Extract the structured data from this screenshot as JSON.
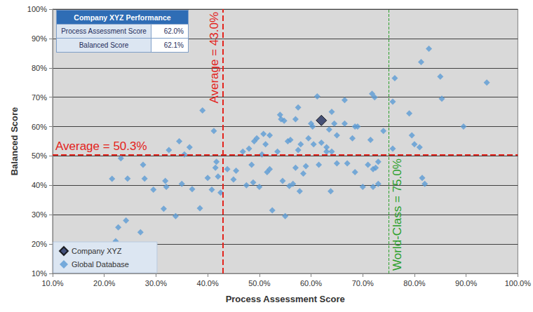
{
  "chart_data": {
    "type": "scatter",
    "x_label": "Process Assessment Score",
    "y_label": "Balanced Score",
    "xlim": [
      10,
      100
    ],
    "xticks": [
      {
        "value": 10,
        "label": "10.0%"
      },
      {
        "value": 20,
        "label": "20.0%"
      },
      {
        "value": 30,
        "label": "30.0%"
      },
      {
        "value": 40,
        "label": "40.0%"
      },
      {
        "value": 50,
        "label": "50.0%"
      },
      {
        "value": 60,
        "label": "60.0%"
      },
      {
        "value": 70,
        "label": "70.0%"
      },
      {
        "value": 80,
        "label": "80.0%"
      },
      {
        "value": 90,
        "label": "90.0%"
      },
      {
        "value": 100,
        "label": "100.0%"
      }
    ],
    "ylim": [
      10,
      100
    ],
    "yticks": [
      {
        "value": 10,
        "label": "10%"
      },
      {
        "value": 20,
        "label": "20%"
      },
      {
        "value": 30,
        "label": "30%"
      },
      {
        "value": 40,
        "label": "40%"
      },
      {
        "value": 50,
        "label": "50%"
      },
      {
        "value": 60,
        "label": "60%"
      },
      {
        "value": 70,
        "label": "70%"
      },
      {
        "value": 80,
        "label": "80%"
      },
      {
        "value": 90,
        "label": "90%"
      },
      {
        "value": 100,
        "label": "100%"
      }
    ],
    "grid": true,
    "legend": "lower left",
    "series": [
      {
        "name": "Company XYZ",
        "color": "#1f2d5c",
        "marker": "diamond",
        "x": [
          62.0
        ],
        "values": [
          62.1
        ]
      },
      {
        "name": "Global Database",
        "color": "#5b9bd5",
        "marker": "diamond",
        "x": [
          21.5,
          22.2,
          22.7,
          23.2,
          24.2,
          24.5,
          27.0,
          27.5,
          27.8,
          29.5,
          31.5,
          31.8,
          32.0,
          32.5,
          33.8,
          34.5,
          35.0,
          35.5,
          36.5,
          37.0,
          38.5,
          39.0,
          40.0,
          40.8,
          41.2,
          41.5,
          41.7,
          42.0,
          42.5,
          43.8,
          45.0,
          45.5,
          46.8,
          47.5,
          48.0,
          48.5,
          48.8,
          49.0,
          49.5,
          50.0,
          50.5,
          50.8,
          51.2,
          51.5,
          52.0,
          52.0,
          52.5,
          53.5,
          54.0,
          54.2,
          54.5,
          54.8,
          55.0,
          55.5,
          55.8,
          56.0,
          56.5,
          57.0,
          57.0,
          57.5,
          57.5,
          57.8,
          58.0,
          58.5,
          59.0,
          59.5,
          60.0,
          60.3,
          60.5,
          61.2,
          61.5,
          62.0,
          63.0,
          63.0,
          63.5,
          63.8,
          64.0,
          64.0,
          64.5,
          65.0,
          65.0,
          66.5,
          66.5,
          67.0,
          68.0,
          68.5,
          68.5,
          69.0,
          70.0,
          71.0,
          71.5,
          71.8,
          72.0,
          72.0,
          72.3,
          72.5,
          73.0,
          73.0,
          74.0,
          75.8,
          75.8,
          76.2,
          79.0,
          79.5,
          80.0,
          81.0,
          81.3,
          81.5,
          82.0,
          82.8,
          85.0,
          85.3,
          89.5,
          94.0
        ],
        "values": [
          42.2,
          21.0,
          25.7,
          49.2,
          28.0,
          42.3,
          24.0,
          47.0,
          42.3,
          38.5,
          32.0,
          41.5,
          39.5,
          52.0,
          29.5,
          55.0,
          40.5,
          50.5,
          53.0,
          38.7,
          32.2,
          65.5,
          42.5,
          38.5,
          58.5,
          46.0,
          48.0,
          43.0,
          37.5,
          45.5,
          42.0,
          45.0,
          51.5,
          40.0,
          52.5,
          47.0,
          41.0,
          55.0,
          56.0,
          39.5,
          50.5,
          57.5,
          54.0,
          44.5,
          45.5,
          57.0,
          31.5,
          51.5,
          64.0,
          62.5,
          41.5,
          62.0,
          29.5,
          55.0,
          39.8,
          55.5,
          40.5,
          46.0,
          62.5,
          52.0,
          66.5,
          38.0,
          54.0,
          44.0,
          46.5,
          56.0,
          61.0,
          60.0,
          54.0,
          70.3,
          47.0,
          54.5,
          53.0,
          51.5,
          59.0,
          38.0,
          65.0,
          51.5,
          61.0,
          57.0,
          47.5,
          69.0,
          61.0,
          47.5,
          56.0,
          44.5,
          60.0,
          60.0,
          39.5,
          47.0,
          55.5,
          71.2,
          39.5,
          45.5,
          70.0,
          46.0,
          48.0,
          40.5,
          58.5,
          52.5,
          68.5,
          76.5,
          64.5,
          57.0,
          54.0,
          53.0,
          82.0,
          42.5,
          40.5,
          86.5,
          77.0,
          69.5,
          60.0,
          75.0
        ]
      }
    ],
    "reference_lines": [
      {
        "axis": "x",
        "value": 43.0,
        "label": "Average = 43.0%",
        "color": "#e3231c",
        "line_style": "dashed"
      },
      {
        "axis": "y",
        "value": 50.3,
        "label": "Average = 50.3%",
        "color": "#e3231c",
        "line_style": "dashed"
      },
      {
        "axis": "x",
        "value": 75.0,
        "label": "World-Class = 75.0%",
        "color": "#2ca02c",
        "line_style": "dashed"
      }
    ],
    "table": {
      "title": "Company XYZ Performance",
      "rows": [
        [
          "Process Assessment Score",
          "62.0%"
        ],
        [
          "Balanced Score",
          "62.1%"
        ]
      ]
    }
  }
}
